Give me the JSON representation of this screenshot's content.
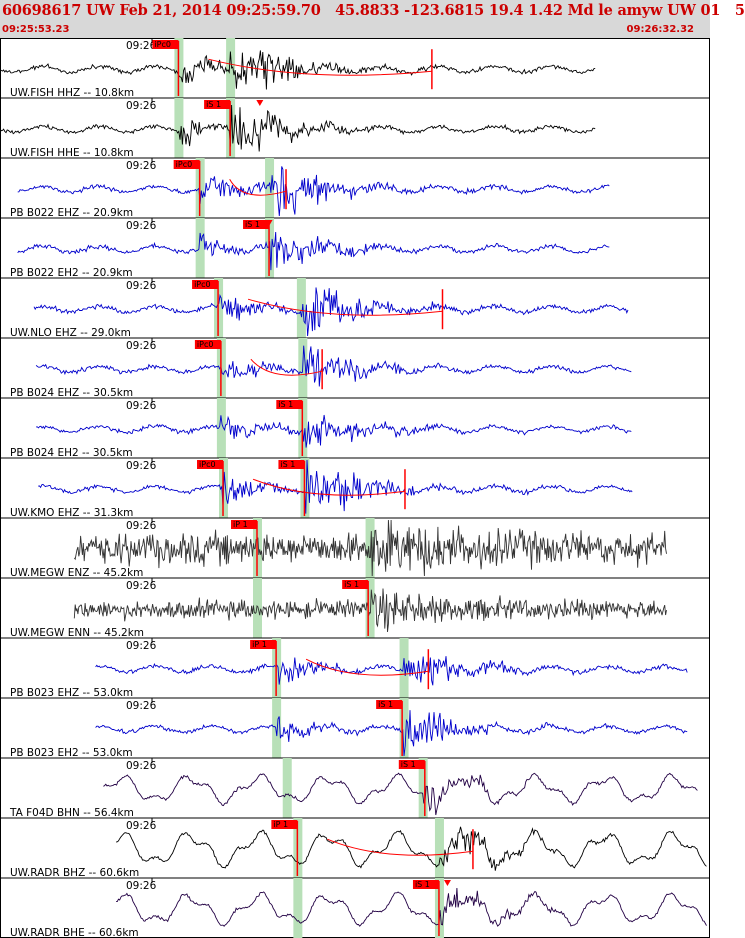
{
  "header": {
    "title": "60698617 UW Feb 21, 2014 09:25:59.70   45.8833 -123.6815 19.4 1.42 Md le amyw UW 01   5",
    "start_time": "09:25:53.23",
    "end_time": "09:26:32.32"
  },
  "colors": {
    "header_bg": "#d8d8d8",
    "header_text": "#cc0000",
    "pick": "#ff0000",
    "pick_window": "#b8e0b8"
  },
  "chart_data": {
    "type": "line",
    "x_range": [
      "09:25:53.23",
      "09:26:32.32"
    ],
    "tick_label": "09:26",
    "traces": [
      {
        "label": "UW.FISH HHZ -- 10.8km",
        "color": "#000000",
        "wave": "quake",
        "amp": 26,
        "start": 0.0,
        "end": 0.842,
        "p_frac": 0.252,
        "s_frac": 0.325,
        "picks": [
          {
            "label": "iPc0",
            "frac": 0.252,
            "kind": "P"
          }
        ],
        "green": [
          0.252,
          0.325
        ],
        "coda": 0.61,
        "triangles": []
      },
      {
        "label": "UW.FISH HHE -- 10.8km",
        "color": "#000000",
        "wave": "quake",
        "amp": 22,
        "start": 0.0,
        "end": 0.842,
        "p_frac": 0.252,
        "s_frac": 0.325,
        "picks": [
          {
            "label": "iS 1",
            "frac": 0.325,
            "kind": "S"
          }
        ],
        "green": [
          0.252,
          0.325
        ],
        "coda": null,
        "triangles": [
          0.367
        ]
      },
      {
        "label": "PB B022 EHZ -- 20.9km",
        "color": "#0000cc",
        "wave": "quake",
        "amp": 26,
        "start": 0.025,
        "end": 0.862,
        "p_frac": 0.282,
        "s_frac": 0.38,
        "picks": [
          {
            "label": "iPc0",
            "frac": 0.282,
            "kind": "P"
          }
        ],
        "green": [
          0.282,
          0.38
        ],
        "coda": 0.404,
        "triangles": []
      },
      {
        "label": "PB B022 EH2 -- 20.9km",
        "color": "#0000cc",
        "wave": "quake",
        "amp": 22,
        "start": 0.025,
        "end": 0.862,
        "p_frac": 0.282,
        "s_frac": 0.38,
        "picks": [
          {
            "label": "iS 1",
            "frac": 0.38,
            "kind": "S"
          }
        ],
        "green": [
          0.282,
          0.38
        ],
        "coda": null,
        "triangles": [
          0.38
        ]
      },
      {
        "label": "UW.NLO EHZ -- 29.0km",
        "color": "#0000cc",
        "wave": "quake",
        "amp": 26,
        "start": 0.048,
        "end": 0.887,
        "p_frac": 0.308,
        "s_frac": 0.425,
        "picks": [
          {
            "label": "iPc0",
            "frac": 0.308,
            "kind": "P"
          }
        ],
        "green": [
          0.308,
          0.425
        ],
        "coda": 0.625,
        "triangles": []
      },
      {
        "label": "PB B024 EHZ -- 30.5km",
        "color": "#0000cc",
        "wave": "quake",
        "amp": 20,
        "start": 0.051,
        "end": 0.892,
        "p_frac": 0.312,
        "s_frac": 0.427,
        "picks": [
          {
            "label": "iPc0",
            "frac": 0.312,
            "kind": "P"
          }
        ],
        "green": [
          0.312,
          0.427
        ],
        "coda": 0.455,
        "triangles": []
      },
      {
        "label": "PB B024 EH2 -- 30.5km",
        "color": "#0000cc",
        "wave": "quake",
        "amp": 22,
        "start": 0.051,
        "end": 0.892,
        "p_frac": 0.312,
        "s_frac": 0.427,
        "picks": [
          {
            "label": "iS 1",
            "frac": 0.427,
            "kind": "S"
          }
        ],
        "green": [
          0.312,
          0.427
        ],
        "coda": null,
        "triangles": []
      },
      {
        "label": "UW.KMO EHZ -- 31.3km",
        "color": "#0000cc",
        "wave": "quake",
        "amp": 26,
        "start": 0.054,
        "end": 0.894,
        "p_frac": 0.315,
        "s_frac": 0.43,
        "picks": [
          {
            "label": "iPc0",
            "frac": 0.315,
            "kind": "P"
          },
          {
            "label": "iS 1",
            "frac": 0.43,
            "kind": "S"
          }
        ],
        "green": [
          0.315,
          0.43
        ],
        "coda": 0.572,
        "triangles": []
      },
      {
        "label": "UW.MEGW ENZ -- 45.2km",
        "color": "#333333",
        "wave": "noise",
        "amp": 24,
        "start": 0.105,
        "end": 0.942,
        "p_frac": 0.363,
        "s_frac": 0.522,
        "picks": [
          {
            "label": "iP 1",
            "frac": 0.363,
            "kind": "P"
          }
        ],
        "green": [
          0.363,
          0.522
        ],
        "coda": null,
        "triangles": []
      },
      {
        "label": "UW.MEGW ENN -- 45.2km",
        "color": "#333333",
        "wave": "noise",
        "amp": 14,
        "start": 0.105,
        "end": 0.942,
        "p_frac": 0.363,
        "s_frac": 0.522,
        "picks": [
          {
            "label": "iS 1",
            "frac": 0.52,
            "kind": "S"
          }
        ],
        "green": [
          0.363,
          0.522
        ],
        "coda": null,
        "triangles": []
      },
      {
        "label": "PB B023 EHZ -- 53.0km",
        "color": "#0000cc",
        "wave": "quake",
        "amp": 24,
        "start": 0.135,
        "end": 0.972,
        "p_frac": 0.39,
        "s_frac": 0.57,
        "picks": [
          {
            "label": "iP 1",
            "frac": 0.39,
            "kind": "P"
          }
        ],
        "green": [
          0.39,
          0.57
        ],
        "coda": 0.605,
        "triangles": []
      },
      {
        "label": "PB B023 EH2 -- 53.0km",
        "color": "#0000cc",
        "wave": "quake",
        "amp": 22,
        "start": 0.135,
        "end": 0.972,
        "p_frac": 0.39,
        "s_frac": 0.57,
        "picks": [
          {
            "label": "iS 1",
            "frac": 0.568,
            "kind": "S"
          }
        ],
        "green": [
          0.39,
          0.57
        ],
        "coda": null,
        "triangles": []
      },
      {
        "label": "TA F04D BHN -- 56.4km",
        "color": "#220044",
        "wave": "long",
        "amp": 18,
        "start": 0.146,
        "end": 0.985,
        "p_frac": 0.405,
        "s_frac": 0.597,
        "picks": [
          {
            "label": "iS 1",
            "frac": 0.6,
            "kind": "S"
          }
        ],
        "green": [
          0.405,
          0.597
        ],
        "coda": null,
        "triangles": []
      },
      {
        "label": "UW.RADR BHZ -- 60.6km",
        "color": "#000000",
        "wave": "long",
        "amp": 22,
        "start": 0.164,
        "end": 0.999,
        "p_frac": 0.42,
        "s_frac": 0.62,
        "picks": [
          {
            "label": "iP 1",
            "frac": 0.42,
            "kind": "P"
          }
        ],
        "green": [
          0.42,
          0.62
        ],
        "coda": 0.668,
        "triangles": []
      },
      {
        "label": "UW.RADR BHE -- 60.6km",
        "color": "#220044",
        "wave": "long",
        "amp": 20,
        "start": 0.164,
        "end": 0.999,
        "p_frac": 0.42,
        "s_frac": 0.62,
        "picks": [
          {
            "label": "iS 1",
            "frac": 0.62,
            "kind": "S"
          }
        ],
        "green": [
          0.42,
          0.62
        ],
        "coda": null,
        "triangles": [
          0.632
        ]
      }
    ]
  }
}
